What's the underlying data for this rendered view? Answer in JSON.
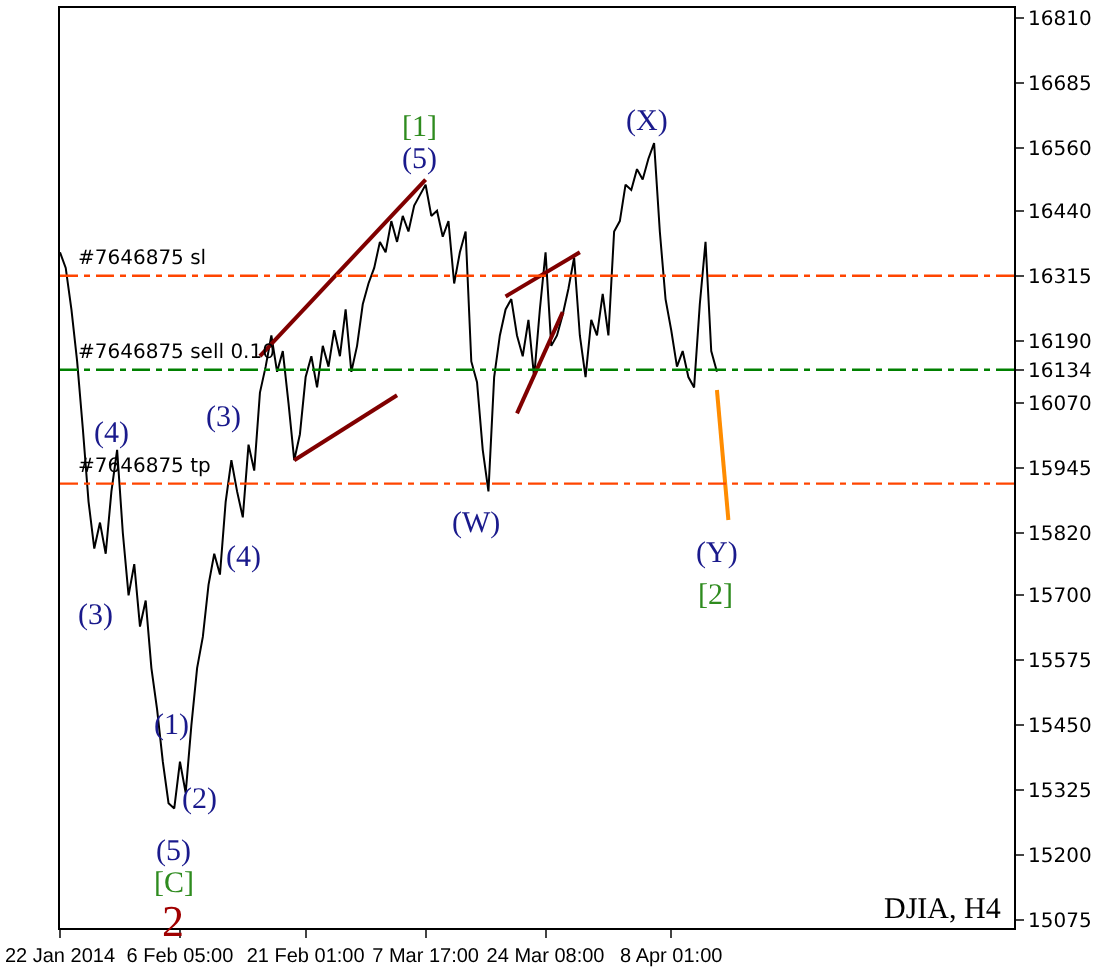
{
  "chart_data": {
    "type": "line",
    "categories": [
      "22 Jan 2014",
      null,
      null,
      null,
      null,
      null,
      null,
      null,
      null,
      null,
      null,
      null,
      null,
      null,
      null,
      null,
      null,
      null,
      null,
      null,
      null,
      "6 Feb 05:00",
      null,
      null,
      null,
      null,
      null,
      null,
      null,
      null,
      null,
      null,
      null,
      null,
      null,
      null,
      null,
      null,
      null,
      null,
      null,
      null,
      null,
      "21 Feb 01:00",
      null,
      null,
      null,
      null,
      null,
      null,
      null,
      null,
      null,
      null,
      null,
      null,
      null,
      null,
      null,
      null,
      null,
      null,
      null,
      null,
      "7 Mar 17:00",
      null,
      null,
      null,
      null,
      null,
      null,
      null,
      null,
      null,
      null,
      null,
      null,
      null,
      null,
      null,
      null,
      null,
      null,
      null,
      null,
      "24 Mar 08:00",
      null,
      null,
      null,
      null,
      null,
      null,
      null,
      null,
      null,
      null,
      null,
      null,
      null,
      null,
      null,
      null,
      null,
      null,
      null,
      null,
      null,
      "8 Apr 01:00",
      null,
      null,
      null,
      null,
      null,
      null,
      null,
      null,
      null,
      null,
      null,
      null,
      null,
      null,
      null,
      null,
      null,
      null,
      null,
      null,
      null,
      null,
      null,
      null,
      null,
      null,
      null,
      null,
      null,
      null,
      null,
      null,
      null,
      null,
      null,
      null,
      null,
      null,
      null,
      null,
      null,
      null,
      null,
      null,
      null,
      null,
      null,
      null,
      null,
      null,
      null,
      null,
      null,
      null,
      null,
      null,
      null,
      null,
      null,
      null
    ],
    "series": [
      {
        "color": "#000000",
        "values": [
          16360,
          16330,
          16250,
          16150,
          16020,
          15880,
          15790,
          15840,
          15780,
          15900,
          15980,
          15820,
          15700,
          15760,
          15640,
          15690,
          15560,
          15480,
          15380,
          15300,
          15290,
          15380,
          15320,
          15450,
          15560,
          15620,
          15720,
          15780,
          15740,
          15880,
          15960,
          15900,
          15850,
          15990,
          15940,
          16090,
          16140,
          16200,
          16130,
          16170,
          16070,
          15960,
          16010,
          16120,
          16160,
          16100,
          16180,
          16140,
          16210,
          16160,
          16250,
          16130,
          16180,
          16260,
          16300,
          16330,
          16380,
          16360,
          16420,
          16380,
          16430,
          16400,
          16450,
          16470,
          16490,
          16430,
          16440,
          16390,
          16420,
          16300,
          16360,
          16400,
          16150,
          16110,
          15980,
          15900,
          16120,
          16200,
          16250,
          16270,
          16200,
          16160,
          16230,
          16120,
          16250,
          16360,
          16180,
          16200,
          16240,
          16290,
          16350,
          16200,
          16120,
          16230,
          16200,
          16280,
          16200,
          16400,
          16420,
          16490,
          16480,
          16520,
          16500,
          16540,
          16570,
          16400,
          16270,
          16210,
          16140,
          16170,
          16120,
          16100,
          16260,
          16380,
          16170,
          16130,
          null,
          null,
          null,
          null,
          null,
          null,
          null,
          null,
          null,
          null,
          null,
          null,
          null,
          null,
          null,
          null,
          null,
          null,
          null,
          null,
          null,
          null,
          null,
          null,
          null,
          null,
          null,
          null,
          null,
          null,
          null,
          null,
          null,
          null,
          null,
          null,
          null,
          null,
          null,
          null,
          null,
          null,
          null,
          null,
          null,
          null,
          null,
          null,
          null,
          null,
          null,
          null
        ]
      },
      {
        "color": "#800000",
        "values": [
          null,
          null,
          null,
          null,
          null,
          null,
          null,
          null,
          null,
          null,
          null,
          null,
          null,
          null,
          null,
          null,
          null,
          null,
          null,
          null,
          null,
          null,
          null,
          null,
          null,
          null,
          null,
          null,
          null,
          null,
          null,
          null,
          null,
          null,
          null,
          16160,
          null,
          null,
          null,
          null,
          null,
          null,
          null,
          null,
          null,
          null,
          null,
          null,
          null,
          null,
          null,
          null,
          null,
          null,
          null,
          null,
          null,
          null,
          null,
          null,
          null,
          null,
          null,
          null,
          16500,
          null,
          null,
          null,
          null,
          null,
          null,
          null,
          null,
          null,
          null,
          null,
          null,
          null,
          null,
          null,
          null,
          null,
          null,
          null,
          null,
          null,
          null,
          null,
          null,
          null,
          null,
          null,
          null,
          null,
          null,
          null,
          null,
          null,
          null,
          null,
          null,
          null,
          null,
          null,
          null,
          null,
          null,
          null,
          null,
          null,
          null,
          null,
          null,
          null,
          null,
          null,
          null,
          null,
          null,
          null,
          null,
          null,
          null,
          null,
          null,
          null,
          null,
          null,
          null,
          null,
          null,
          null,
          null,
          null,
          null,
          null,
          null,
          null,
          null,
          null,
          null,
          null,
          null,
          null,
          null,
          null,
          null,
          null,
          null,
          null,
          null,
          null,
          null,
          null,
          null,
          null,
          null,
          null,
          null,
          null,
          null,
          null,
          null,
          null,
          null,
          null,
          null,
          null
        ]
      },
      {
        "color": "#800000",
        "values": [
          null,
          null,
          null,
          null,
          null,
          null,
          null,
          null,
          null,
          null,
          null,
          null,
          null,
          null,
          null,
          null,
          null,
          null,
          null,
          null,
          null,
          null,
          null,
          null,
          null,
          null,
          null,
          null,
          null,
          null,
          null,
          null,
          null,
          null,
          null,
          null,
          null,
          null,
          null,
          null,
          null,
          15960,
          null,
          null,
          null,
          null,
          null,
          null,
          null,
          null,
          null,
          null,
          null,
          null,
          null,
          null,
          null,
          null,
          null,
          16085,
          null,
          null,
          null,
          null,
          null,
          null,
          null,
          null,
          null,
          null,
          null,
          null,
          null,
          null,
          null,
          null,
          null,
          null,
          null,
          null,
          null,
          null,
          null,
          null,
          null,
          null,
          null,
          null,
          null,
          null,
          null,
          null,
          null,
          null,
          null,
          null,
          null,
          null,
          null,
          null,
          null,
          null,
          null,
          null,
          null,
          null,
          null,
          null,
          null,
          null,
          null,
          null,
          null,
          null,
          null,
          null,
          null,
          null,
          null,
          null,
          null,
          null,
          null,
          null,
          null,
          null,
          null,
          null,
          null,
          null,
          null,
          null,
          null,
          null,
          null,
          null,
          null,
          null,
          null,
          null,
          null,
          null,
          null,
          null,
          null,
          null,
          null,
          null,
          null,
          null,
          null,
          null,
          null,
          null,
          null,
          null,
          null,
          null,
          null,
          null,
          null,
          null,
          null,
          null,
          null,
          null,
          null,
          null
        ]
      },
      {
        "color": "#800000",
        "values": [
          null,
          null,
          null,
          null,
          null,
          null,
          null,
          null,
          null,
          null,
          null,
          null,
          null,
          null,
          null,
          null,
          null,
          null,
          null,
          null,
          null,
          null,
          null,
          null,
          null,
          null,
          null,
          null,
          null,
          null,
          null,
          null,
          null,
          null,
          null,
          null,
          null,
          null,
          null,
          null,
          null,
          null,
          null,
          null,
          null,
          null,
          null,
          null,
          null,
          null,
          null,
          null,
          null,
          null,
          null,
          null,
          null,
          null,
          null,
          null,
          null,
          null,
          null,
          null,
          null,
          null,
          null,
          null,
          null,
          null,
          null,
          null,
          null,
          null,
          null,
          null,
          null,
          null,
          16275,
          null,
          null,
          null,
          null,
          null,
          null,
          null,
          null,
          null,
          null,
          null,
          null,
          16360,
          null,
          null,
          null,
          null,
          null,
          null,
          null,
          null,
          null,
          null,
          null,
          null,
          null,
          null,
          null,
          null,
          null,
          null,
          null,
          null,
          null,
          null,
          null,
          null,
          null,
          null,
          null,
          null,
          null,
          null,
          null,
          null,
          null,
          null,
          null,
          null,
          null,
          null,
          null,
          null,
          null,
          null,
          null,
          null,
          null,
          null,
          null,
          null,
          null,
          null,
          null,
          null,
          null,
          null,
          null,
          null,
          null,
          null,
          null,
          null,
          null,
          null,
          null,
          null,
          null,
          null,
          null,
          null,
          null,
          null,
          null,
          null,
          null,
          null,
          null,
          null
        ]
      },
      {
        "color": "#800000",
        "values": [
          null,
          null,
          null,
          null,
          null,
          null,
          null,
          null,
          null,
          null,
          null,
          null,
          null,
          null,
          null,
          null,
          null,
          null,
          null,
          null,
          null,
          null,
          null,
          null,
          null,
          null,
          null,
          null,
          null,
          null,
          null,
          null,
          null,
          null,
          null,
          null,
          null,
          null,
          null,
          null,
          null,
          null,
          null,
          null,
          null,
          null,
          null,
          null,
          null,
          null,
          null,
          null,
          null,
          null,
          null,
          null,
          null,
          null,
          null,
          null,
          null,
          null,
          null,
          null,
          null,
          null,
          null,
          null,
          null,
          null,
          null,
          null,
          null,
          null,
          null,
          null,
          null,
          null,
          null,
          null,
          16050,
          null,
          null,
          null,
          null,
          null,
          null,
          null,
          16245,
          null,
          null,
          null,
          null,
          null,
          null,
          null,
          null,
          null,
          null,
          null,
          null,
          null,
          null,
          null,
          null,
          null,
          null,
          null,
          null,
          null,
          null,
          null,
          null,
          null,
          null,
          null,
          null,
          null,
          null,
          null,
          null,
          null,
          null,
          null,
          null,
          null,
          null,
          null,
          null,
          null,
          null,
          null,
          null,
          null,
          null,
          null,
          null,
          null,
          null,
          null,
          null,
          null,
          null,
          null,
          null,
          null,
          null,
          null,
          null,
          null,
          null,
          null,
          null,
          null,
          null,
          null,
          null,
          null,
          null,
          null,
          null,
          null,
          null,
          null,
          null,
          null,
          null,
          null
        ]
      },
      {
        "color": "#ff8c00",
        "values": [
          null,
          null,
          null,
          null,
          null,
          null,
          null,
          null,
          null,
          null,
          null,
          null,
          null,
          null,
          null,
          null,
          null,
          null,
          null,
          null,
          null,
          null,
          null,
          null,
          null,
          null,
          null,
          null,
          null,
          null,
          null,
          null,
          null,
          null,
          null,
          null,
          null,
          null,
          null,
          null,
          null,
          null,
          null,
          null,
          null,
          null,
          null,
          null,
          null,
          null,
          null,
          null,
          null,
          null,
          null,
          null,
          null,
          null,
          null,
          null,
          null,
          null,
          null,
          null,
          null,
          null,
          null,
          null,
          null,
          null,
          null,
          null,
          null,
          null,
          null,
          null,
          null,
          null,
          null,
          null,
          null,
          null,
          null,
          null,
          null,
          null,
          null,
          null,
          null,
          null,
          null,
          null,
          null,
          null,
          null,
          null,
          null,
          null,
          null,
          null,
          null,
          null,
          null,
          null,
          null,
          null,
          null,
          null,
          null,
          null,
          null,
          null,
          null,
          null,
          null,
          16095,
          null,
          15845,
          null,
          null,
          null,
          null,
          null,
          null,
          null,
          null,
          null,
          null,
          null,
          null,
          null,
          null,
          null,
          null,
          null,
          null,
          null,
          null,
          null,
          null,
          null,
          null,
          null,
          null,
          null,
          null,
          null,
          null,
          null,
          null,
          null,
          null,
          null,
          null,
          null,
          null,
          null,
          null,
          null,
          null,
          null,
          null,
          null,
          null,
          null,
          null,
          null,
          null
        ]
      }
    ],
    "ylim": [
      15060,
      16830
    ],
    "yticks": [
      15075,
      15200,
      15325,
      15450,
      15575,
      15700,
      15820,
      15945,
      16070,
      16134,
      16190,
      16315,
      16440,
      16560,
      16685,
      16810
    ],
    "ref_lines": [
      {
        "axis": "y",
        "value": 16315,
        "label": "#7646875 sl",
        "color": "#ff4500",
        "line_style": "dashed"
      },
      {
        "axis": "y",
        "value": 16134,
        "label": "#7646875 sell 0.10",
        "color": "#008000",
        "line_style": "dashed"
      },
      {
        "axis": "y",
        "value": 15915,
        "label": "#7646875 tp",
        "color": "#ff4500",
        "line_style": "dashed"
      }
    ],
    "annotations": [
      "(4)",
      "(3)",
      "(1)",
      "(2)",
      "(5)",
      "[C]",
      "2",
      "(3)",
      "(4)",
      "(5)",
      "[1]",
      "(W)",
      "(X)",
      "(Y)",
      "[2]",
      "DJIA, H4"
    ],
    "grid": false,
    "marker": "none",
    "line_style": "solid"
  }
}
